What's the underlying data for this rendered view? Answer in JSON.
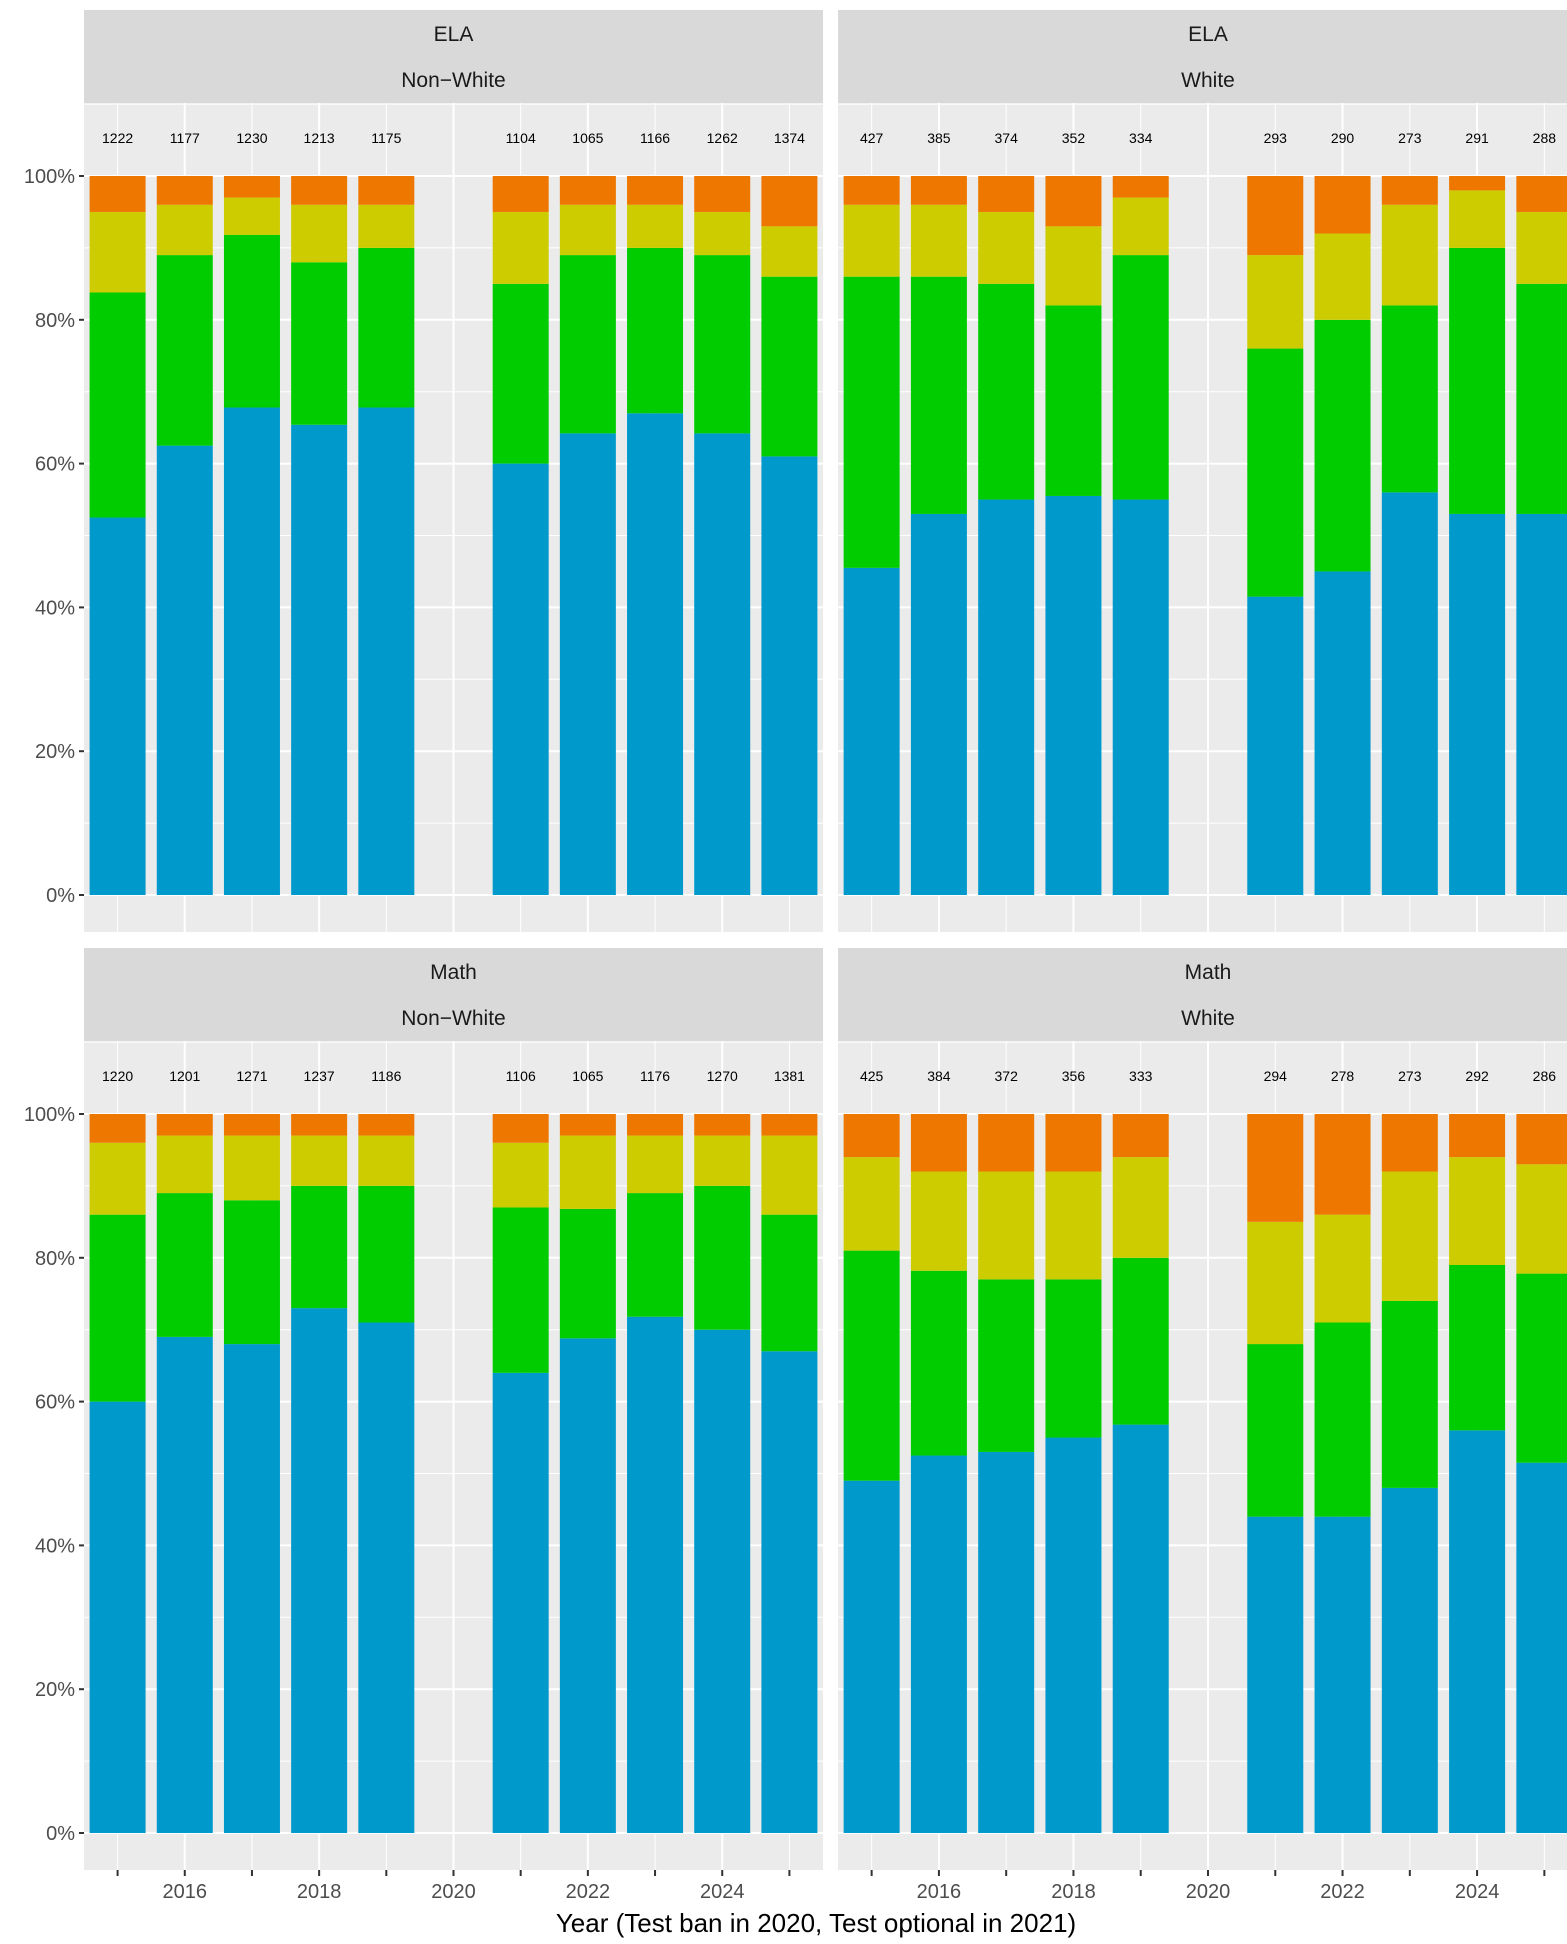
{
  "chart_data": {
    "type": "bar",
    "stacked": true,
    "y_format": "percent",
    "ylim": [
      0,
      1.1
    ],
    "y_ticks": [
      0,
      0.2,
      0.4,
      0.6,
      0.8,
      1.0
    ],
    "y_tick_labels": [
      "0%",
      "20%",
      "40%",
      "60%",
      "80%",
      "100%"
    ],
    "xlim": [
      2014.5,
      2025.5
    ],
    "x_ticks": [
      2015,
      2016,
      2017,
      2018,
      2019,
      2020,
      2021,
      2022,
      2023,
      2024,
      2025
    ],
    "x_tick_labels": [
      {
        "x": 2016,
        "text": "2016"
      },
      {
        "x": 2018,
        "text": "2018"
      },
      {
        "x": 2020,
        "text": "2020"
      },
      {
        "x": 2022,
        "text": "2022"
      },
      {
        "x": 2024,
        "text": "2024"
      }
    ],
    "xlabel": "Year (Test ban in 2020, Test optional in 2021)",
    "ylabel": "",
    "legend": "none",
    "grid": true,
    "series_colors": [
      "#0099cc",
      "#00cc00",
      "#cccc00",
      "#ee7700"
    ],
    "panels": [
      {
        "strip": [
          "ELA",
          "Non−White"
        ],
        "years": [
          2015,
          2016,
          2017,
          2018,
          2019,
          2021,
          2022,
          2023,
          2024,
          2025
        ],
        "counts": [
          "1222",
          "1177",
          "1230",
          "1213",
          "1175",
          "1104",
          "1065",
          "1166",
          "1262",
          "1374"
        ],
        "stack_tops": [
          [
            0.525,
            0.625,
            0.678,
            0.654,
            0.678,
            0.6,
            0.642,
            0.67,
            0.642,
            0.61
          ],
          [
            0.838,
            0.89,
            0.918,
            0.88,
            0.9,
            0.85,
            0.89,
            0.9,
            0.89,
            0.86
          ],
          [
            0.95,
            0.96,
            0.97,
            0.96,
            0.96,
            0.95,
            0.96,
            0.96,
            0.95,
            0.93
          ],
          [
            1,
            1,
            1,
            1,
            1,
            1,
            1,
            1,
            1,
            1
          ]
        ]
      },
      {
        "strip": [
          "ELA",
          "White"
        ],
        "years": [
          2015,
          2016,
          2017,
          2018,
          2019,
          2021,
          2022,
          2023,
          2024,
          2025
        ],
        "counts": [
          "427",
          "385",
          "374",
          "352",
          "334",
          "293",
          "290",
          "273",
          "291",
          "288"
        ],
        "stack_tops": [
          [
            0.455,
            0.53,
            0.55,
            0.555,
            0.55,
            0.415,
            0.45,
            0.56,
            0.53,
            0.53
          ],
          [
            0.86,
            0.86,
            0.85,
            0.82,
            0.89,
            0.76,
            0.8,
            0.82,
            0.9,
            0.85
          ],
          [
            0.96,
            0.96,
            0.95,
            0.93,
            0.97,
            0.89,
            0.92,
            0.96,
            0.98,
            0.95
          ],
          [
            1,
            1,
            1,
            1,
            1,
            1,
            1,
            1,
            1,
            1
          ]
        ]
      },
      {
        "strip": [
          "Math",
          "Non−White"
        ],
        "years": [
          2015,
          2016,
          2017,
          2018,
          2019,
          2021,
          2022,
          2023,
          2024,
          2025
        ],
        "counts": [
          "1220",
          "1201",
          "1271",
          "1237",
          "1186",
          "1106",
          "1065",
          "1176",
          "1270",
          "1381"
        ],
        "stack_tops": [
          [
            0.6,
            0.69,
            0.68,
            0.73,
            0.71,
            0.64,
            0.688,
            0.718,
            0.7,
            0.67
          ],
          [
            0.86,
            0.89,
            0.88,
            0.9,
            0.9,
            0.87,
            0.868,
            0.89,
            0.9,
            0.86
          ],
          [
            0.96,
            0.97,
            0.97,
            0.97,
            0.97,
            0.96,
            0.97,
            0.97,
            0.97,
            0.97
          ],
          [
            1,
            1,
            1,
            1,
            1,
            1,
            1,
            1,
            1,
            1
          ]
        ]
      },
      {
        "strip": [
          "Math",
          "White"
        ],
        "years": [
          2015,
          2016,
          2017,
          2018,
          2019,
          2021,
          2022,
          2023,
          2024,
          2025
        ],
        "counts": [
          "425",
          "384",
          "372",
          "356",
          "333",
          "294",
          "278",
          "273",
          "292",
          "286"
        ],
        "stack_tops": [
          [
            0.49,
            0.525,
            0.53,
            0.55,
            0.568,
            0.44,
            0.44,
            0.48,
            0.56,
            0.515
          ],
          [
            0.81,
            0.782,
            0.77,
            0.77,
            0.8,
            0.68,
            0.71,
            0.74,
            0.79,
            0.778
          ],
          [
            0.94,
            0.92,
            0.92,
            0.92,
            0.94,
            0.85,
            0.86,
            0.92,
            0.94,
            0.93
          ],
          [
            1,
            1,
            1,
            1,
            1,
            1,
            1,
            1,
            1,
            1
          ]
        ]
      }
    ]
  }
}
